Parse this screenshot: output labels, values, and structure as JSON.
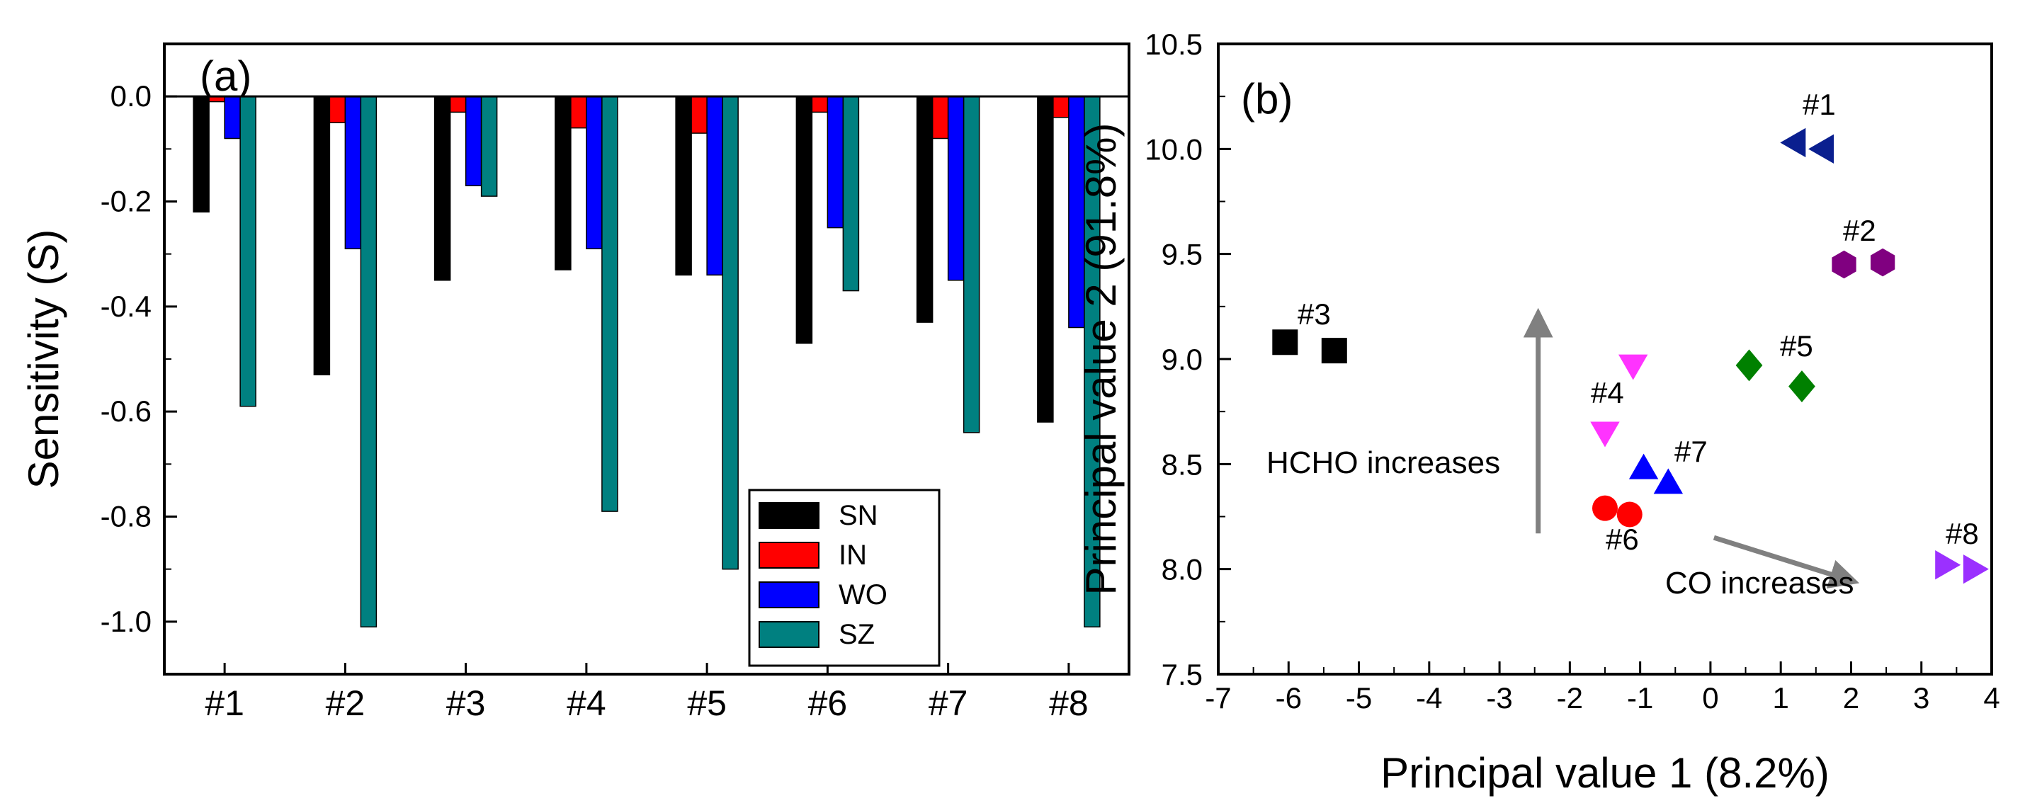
{
  "chart_data": [
    {
      "type": "bar",
      "panel_label": "(a)",
      "title": "",
      "xlabel": "",
      "ylabel": "Sensitivity (S)",
      "categories": [
        "#1",
        "#2",
        "#3",
        "#4",
        "#5",
        "#6",
        "#7",
        "#8"
      ],
      "series": [
        {
          "name": "SN",
          "color": "#000000",
          "values": [
            -0.22,
            -0.53,
            -0.35,
            -0.33,
            -0.34,
            -0.47,
            -0.43,
            -0.62
          ]
        },
        {
          "name": "IN",
          "color": "#ff0000",
          "values": [
            -0.01,
            -0.05,
            -0.03,
            -0.06,
            -0.07,
            -0.03,
            -0.08,
            -0.04
          ]
        },
        {
          "name": "WO",
          "color": "#0000ff",
          "values": [
            -0.08,
            -0.29,
            -0.17,
            -0.29,
            -0.34,
            -0.25,
            -0.35,
            -0.44
          ]
        },
        {
          "name": "SZ",
          "color": "#008080",
          "values": [
            -0.59,
            -1.01,
            -0.19,
            -0.79,
            -0.9,
            -0.37,
            -0.64,
            -1.01
          ]
        }
      ],
      "ylim": [
        -1.1,
        0.1
      ],
      "yticks": [
        0.0,
        -0.2,
        -0.4,
        -0.6,
        -0.8,
        -1.0
      ],
      "ytick_labels": [
        "0.0",
        "-0.2",
        "-0.4",
        "-0.6",
        "-0.8",
        "-1.0"
      ],
      "legend_position": "bottom-right",
      "grid": false
    },
    {
      "type": "scatter",
      "panel_label": "(b)",
      "title": "",
      "xlabel": "Principal value 1 (8.2%)",
      "ylabel": "Principal value 2 (91.8%)",
      "xlim": [
        -7,
        4
      ],
      "ylim": [
        7.5,
        10.5
      ],
      "xticks": [
        -7,
        -6,
        -5,
        -4,
        -3,
        -2,
        -1,
        0,
        1,
        2,
        3,
        4
      ],
      "xtick_labels": [
        "-7",
        "-6",
        "-5",
        "-4",
        "-3",
        "-2",
        "-1",
        "0",
        "1",
        "2",
        "3",
        "4"
      ],
      "yticks": [
        7.5,
        8.0,
        8.5,
        9.0,
        9.5,
        10.0,
        10.5
      ],
      "ytick_labels": [
        "7.5",
        "8.0",
        "8.5",
        "9.0",
        "9.5",
        "10.0",
        "10.5"
      ],
      "grid": false,
      "groups": [
        {
          "label": "#1",
          "marker": "triangle-left",
          "color": "#0a1f8f",
          "points": [
            [
              1.2,
              10.03
            ],
            [
              1.6,
              10.0
            ]
          ]
        },
        {
          "label": "#2",
          "marker": "hexagon",
          "color": "#800080",
          "points": [
            [
              1.9,
              9.45
            ],
            [
              2.45,
              9.46
            ]
          ]
        },
        {
          "label": "#3",
          "marker": "square",
          "color": "#000000",
          "points": [
            [
              -6.05,
              9.08
            ],
            [
              -5.35,
              9.04
            ]
          ]
        },
        {
          "label": "#4",
          "marker": "triangle-down",
          "color": "#ff33ff",
          "points": [
            [
              -1.5,
              8.65
            ],
            [
              -1.1,
              8.97
            ]
          ]
        },
        {
          "label": "#5",
          "marker": "diamond",
          "color": "#008000",
          "points": [
            [
              0.55,
              8.97
            ],
            [
              1.3,
              8.87
            ]
          ]
        },
        {
          "label": "#6",
          "marker": "circle",
          "color": "#ff0000",
          "points": [
            [
              -1.5,
              8.29
            ],
            [
              -1.15,
              8.26
            ]
          ]
        },
        {
          "label": "#7",
          "marker": "triangle-up",
          "color": "#0000ff",
          "points": [
            [
              -0.95,
              8.48
            ],
            [
              -0.6,
              8.41
            ]
          ]
        },
        {
          "label": "#8",
          "marker": "triangle-right",
          "color": "#9b30ff",
          "points": [
            [
              3.35,
              8.02
            ],
            [
              3.75,
              8.0
            ]
          ]
        }
      ],
      "annotations": [
        {
          "text": "HCHO increases",
          "type": "arrow",
          "from": [
            -2.45,
            8.17
          ],
          "to": [
            -2.45,
            9.22
          ]
        },
        {
          "text": "CO increases",
          "type": "arrow",
          "from": [
            0.05,
            8.15
          ],
          "to": [
            2.05,
            7.94
          ]
        }
      ]
    }
  ]
}
